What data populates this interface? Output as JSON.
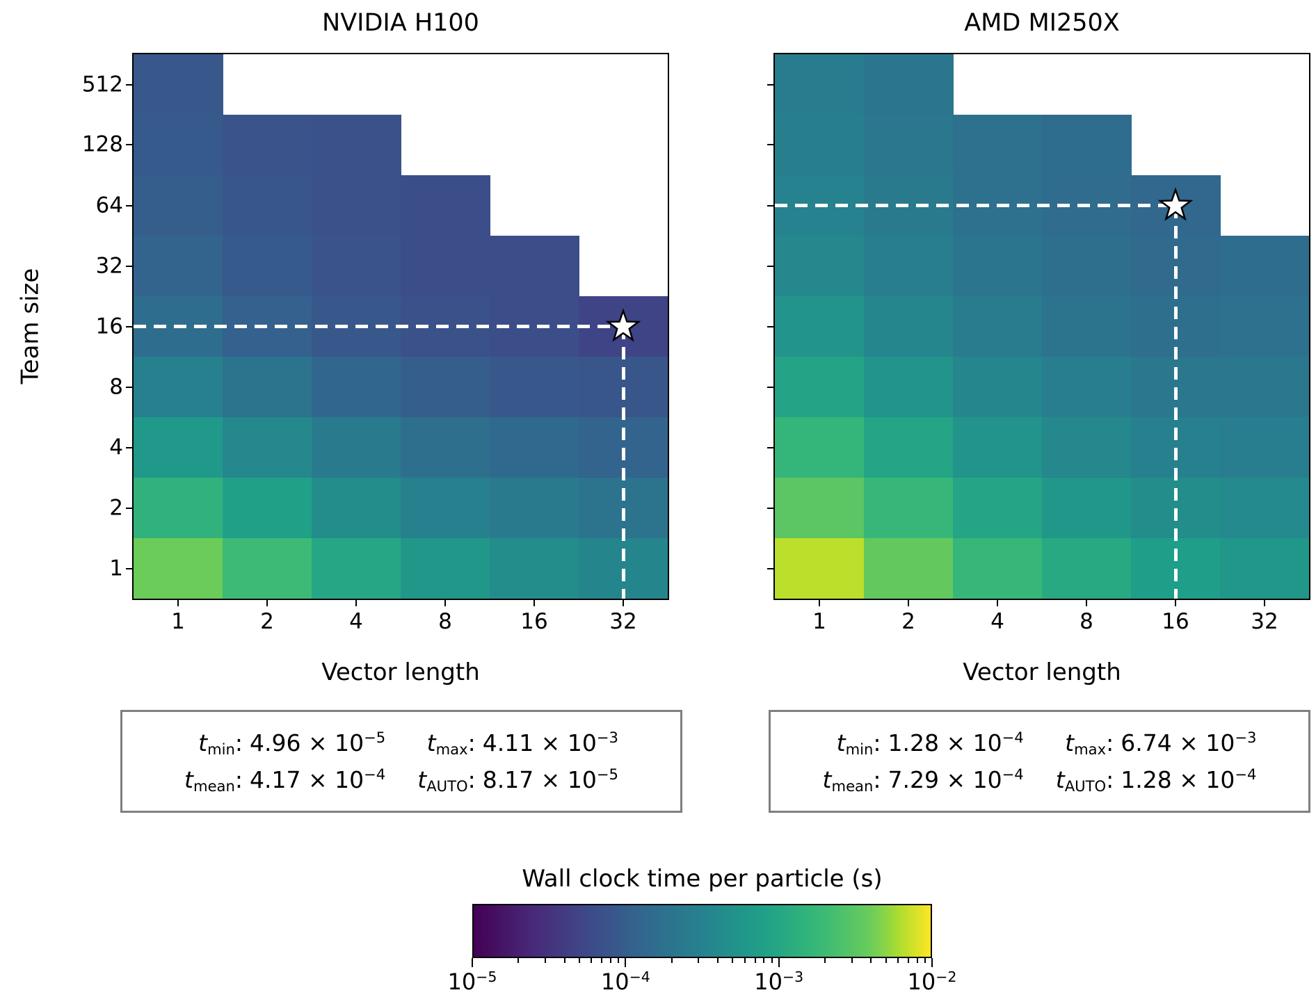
{
  "figure": {
    "background": "#ffffff",
    "accent_colors": {
      "spine": "#000000",
      "stats_border": "#7f7f7f",
      "marker_fill": "#ffffff",
      "dash_line": "#ffffff"
    }
  },
  "colorbar": {
    "title": "Wall clock time per particle (s)",
    "colormap": "viridis",
    "scale": "log",
    "vmin": 1e-05,
    "vmax": 0.01,
    "tick_labels": [
      {
        "base": "10",
        "exp": "−5"
      },
      {
        "base": "10",
        "exp": "−4"
      },
      {
        "base": "10",
        "exp": "−3"
      },
      {
        "base": "10",
        "exp": "−2"
      }
    ]
  },
  "chart_data": [
    {
      "type": "heatmap",
      "title": "NVIDIA H100",
      "xlabel": "Vector length",
      "ylabel": "Team size",
      "x_categories": [
        "1",
        "2",
        "4",
        "8",
        "16",
        "32"
      ],
      "y_categories": [
        "512",
        "128",
        "64",
        "32",
        "16",
        "8",
        "4",
        "2",
        "1"
      ],
      "scale": "log",
      "vmin": 1e-05,
      "vmax": 0.01,
      "show_ytick_labels": true,
      "values": [
        [
          8.5e-05,
          null,
          null,
          null,
          null,
          null
        ],
        [
          9e-05,
          7.5e-05,
          7e-05,
          null,
          null,
          null
        ],
        [
          0.0001,
          8e-05,
          7e-05,
          6.5e-05,
          null,
          null
        ],
        [
          0.00012,
          9e-05,
          7.5e-05,
          6.5e-05,
          6.5e-05,
          null
        ],
        [
          0.00016,
          0.00011,
          8.5e-05,
          7e-05,
          6.5e-05,
          4.96e-05
        ],
        [
          0.0003,
          0.00019,
          0.00013,
          0.0001,
          8.5e-05,
          8e-05
        ],
        [
          0.00065,
          0.00038,
          0.00024,
          0.00017,
          0.00014,
          0.00012
        ],
        [
          0.0015,
          0.0008,
          0.00045,
          0.0003,
          0.00024,
          0.0002
        ],
        [
          0.00411,
          0.002,
          0.001,
          0.0006,
          0.00045,
          0.00035
        ]
      ],
      "optimum": {
        "row": 4,
        "col": 5,
        "team_size": "16",
        "vector_length": "32"
      },
      "stats": [
        {
          "sub": "min",
          "coef": "4.96",
          "exp": "−5"
        },
        {
          "sub": "max",
          "coef": "4.11",
          "exp": "−3"
        },
        {
          "sub": "mean",
          "coef": "4.17",
          "exp": "−4"
        },
        {
          "sub": "AUTO",
          "coef": "8.17",
          "exp": "−5"
        }
      ]
    },
    {
      "type": "heatmap",
      "title": "AMD MI250X",
      "xlabel": "Vector length",
      "ylabel": "Team size",
      "x_categories": [
        "1",
        "2",
        "4",
        "8",
        "16",
        "32"
      ],
      "y_categories": [
        "512",
        "128",
        "64",
        "32",
        "16",
        "8",
        "4",
        "2",
        "1"
      ],
      "scale": "log",
      "vmin": 1e-05,
      "vmax": 0.01,
      "show_ytick_labels": false,
      "values": [
        [
          0.00026,
          0.00021,
          null,
          null,
          null,
          null
        ],
        [
          0.00029,
          0.00022,
          0.00018,
          0.00016,
          null,
          null
        ],
        [
          0.00032,
          0.00024,
          0.00018,
          0.00015,
          0.000128,
          null
        ],
        [
          0.00038,
          0.00028,
          0.00021,
          0.00017,
          0.000145,
          0.00016
        ],
        [
          0.00055,
          0.00036,
          0.00026,
          0.0002,
          0.00017,
          0.00018
        ],
        [
          0.0009,
          0.00055,
          0.00036,
          0.00027,
          0.00022,
          0.00022
        ],
        [
          0.0017,
          0.00095,
          0.00055,
          0.00038,
          0.0003,
          0.00028
        ],
        [
          0.0032,
          0.0018,
          0.00095,
          0.0006,
          0.00045,
          0.0004
        ],
        [
          0.00674,
          0.0036,
          0.0018,
          0.0011,
          0.00075,
          0.0006
        ]
      ],
      "optimum": {
        "row": 2,
        "col": 4,
        "team_size": "64",
        "vector_length": "16"
      },
      "stats": [
        {
          "sub": "min",
          "coef": "1.28",
          "exp": "−4"
        },
        {
          "sub": "max",
          "coef": "6.74",
          "exp": "−3"
        },
        {
          "sub": "mean",
          "coef": "7.29",
          "exp": "−4"
        },
        {
          "sub": "AUTO",
          "coef": "1.28",
          "exp": "−4"
        }
      ]
    }
  ]
}
